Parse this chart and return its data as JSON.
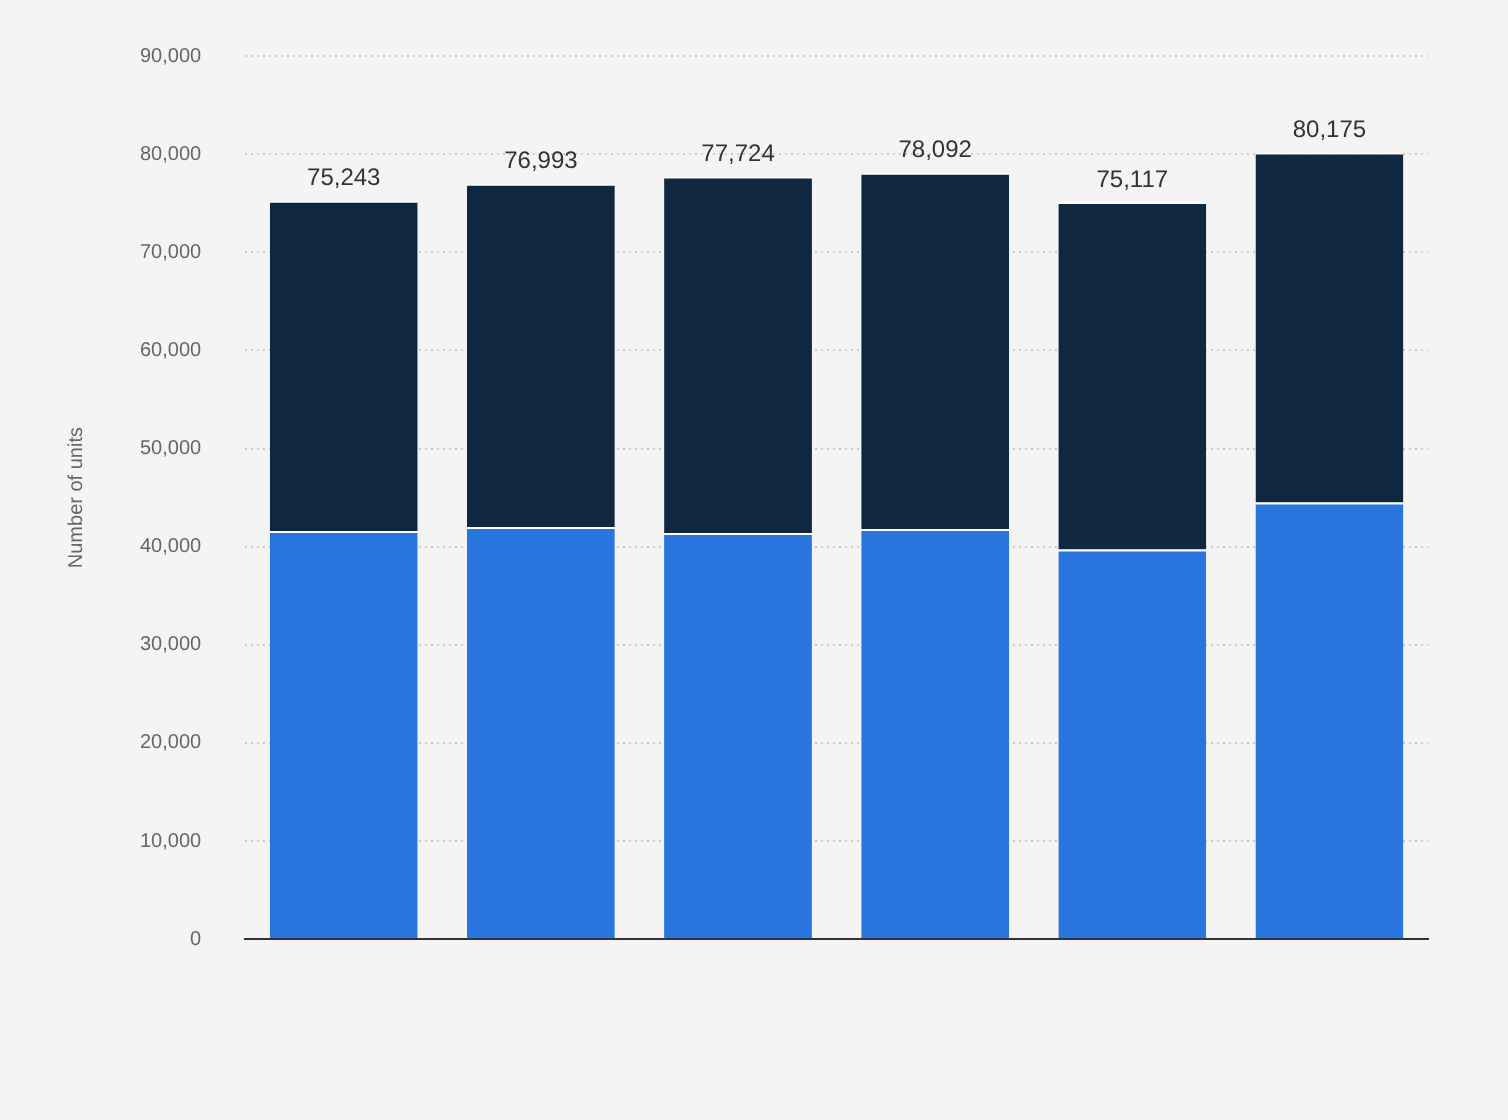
{
  "chart_data": {
    "type": "bar",
    "ylabel": "Number of units",
    "categories": [
      null,
      null,
      null,
      null,
      null,
      null
    ],
    "stacked": true,
    "series": [
      {
        "color": "#2876dd",
        "values": [
          41600,
          42000,
          41400,
          41800,
          39700,
          44500
        ]
      },
      {
        "color": "#0f2840",
        "values": [
          33643,
          34993,
          36324,
          36292,
          35417,
          35675
        ]
      }
    ],
    "totals": [
      "75,243",
      "76,993",
      "77,724",
      "78,092",
      "75,117",
      "80,175"
    ],
    "ylim": [
      0,
      90000
    ],
    "yticks": [
      {
        "value": 0,
        "label": "0"
      },
      {
        "value": 10000,
        "label": "10,000"
      },
      {
        "value": 20000,
        "label": "20,000"
      },
      {
        "value": 30000,
        "label": "30,000"
      },
      {
        "value": 40000,
        "label": "40,000"
      },
      {
        "value": 50000,
        "label": "50,000"
      },
      {
        "value": 60000,
        "label": "60,000"
      },
      {
        "value": 70000,
        "label": "70,000"
      },
      {
        "value": 80000,
        "label": "80,000"
      },
      {
        "value": 90000,
        "label": "90,000"
      }
    ],
    "grid": "y",
    "legend": false
  }
}
